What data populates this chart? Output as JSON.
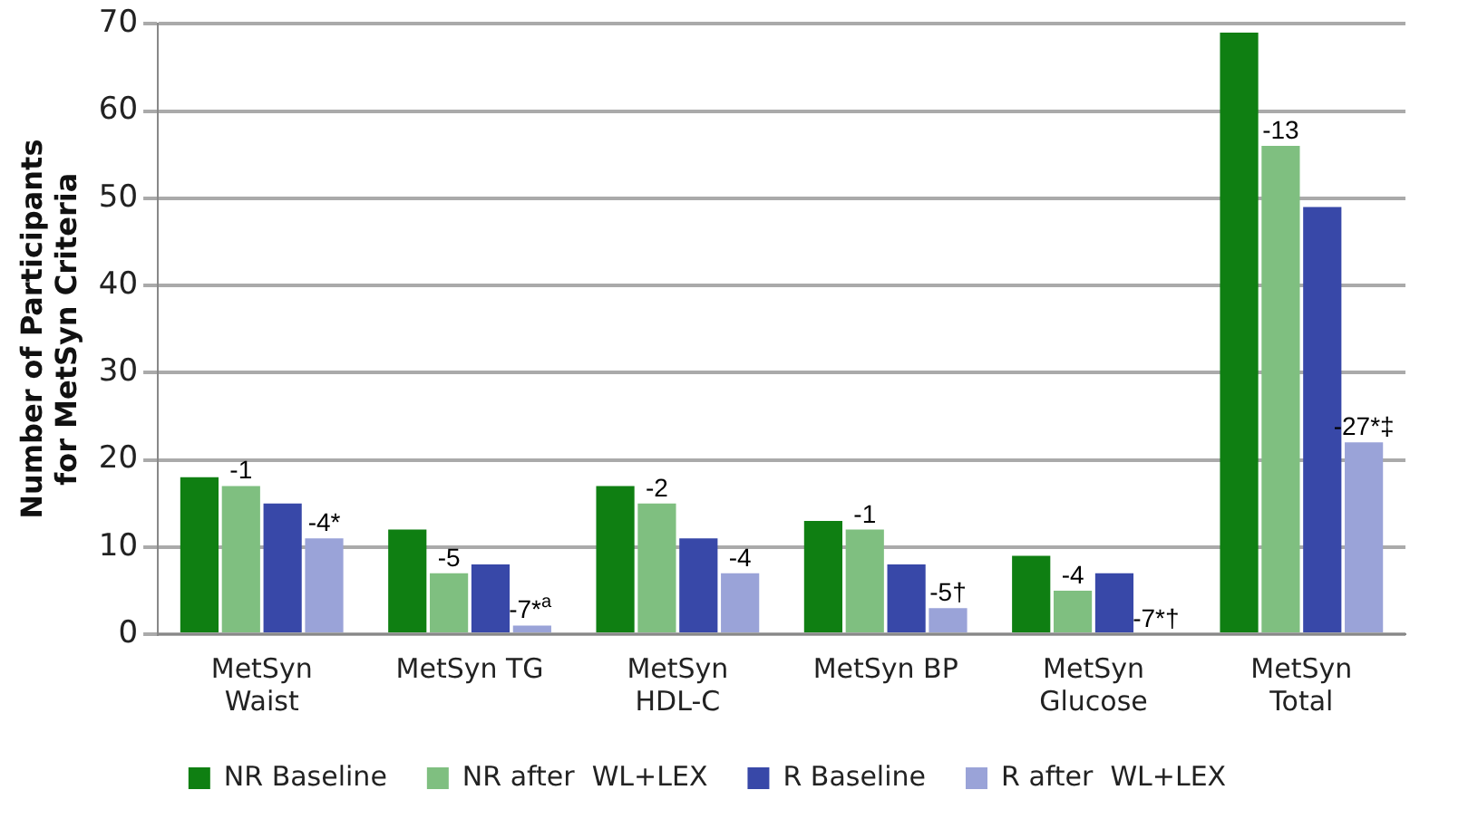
{
  "chart_data": {
    "type": "bar",
    "ylabel": "Number of Participants for MetSyn Criteria",
    "categories": [
      "MetSyn Waist",
      "MetSyn TG",
      "MetSyn HDL-C",
      "MetSyn BP",
      "MetSyn Glucose",
      "MetSyn Total"
    ],
    "series": [
      {
        "name": "NR Baseline",
        "color": "#0f7f12",
        "values": [
          18,
          12,
          17,
          13,
          9,
          69
        ]
      },
      {
        "name": "NR after  WL+LEX",
        "color": "#7fbf80",
        "values": [
          17,
          7,
          15,
          12,
          5,
          56
        ]
      },
      {
        "name": "R Baseline",
        "color": "#3848a8",
        "values": [
          15,
          8,
          11,
          8,
          7,
          49
        ]
      },
      {
        "name": "R after  WL+LEX",
        "color": "#9aa3d8",
        "values": [
          11,
          1,
          7,
          3,
          0,
          22
        ]
      }
    ],
    "ylim": [
      0,
      70
    ],
    "yticks": [
      0,
      10,
      20,
      30,
      40,
      50,
      60,
      70
    ],
    "grid": "y",
    "legend": "bottom",
    "annotations": [
      {
        "text": "-1",
        "x": "MetSyn Waist",
        "y": 17
      },
      {
        "text": "-4*",
        "x": "MetSyn Waist",
        "y": 11
      },
      {
        "text": "-5",
        "x": "MetSyn TG",
        "y": 7
      },
      {
        "text": "-7*$^{a}$",
        "x": "MetSyn TG",
        "y": 1
      },
      {
        "text": "-2",
        "x": "MetSyn HDL-C",
        "y": 15
      },
      {
        "text": "-4",
        "x": "MetSyn HDL-C",
        "y": 7
      },
      {
        "text": "-1",
        "x": "MetSyn BP",
        "y": 12
      },
      {
        "text": "-5†",
        "x": "MetSyn BP",
        "y": 3
      },
      {
        "text": "-4",
        "x": "MetSyn Glucose",
        "y": 5
      },
      {
        "text": "-7*†",
        "x": "MetSyn Glucose",
        "y": 0
      },
      {
        "text": "-13",
        "x": "MetSyn Total",
        "y": 56
      },
      {
        "text": "-27*‡",
        "x": "MetSyn Total",
        "y": 22
      }
    ]
  }
}
